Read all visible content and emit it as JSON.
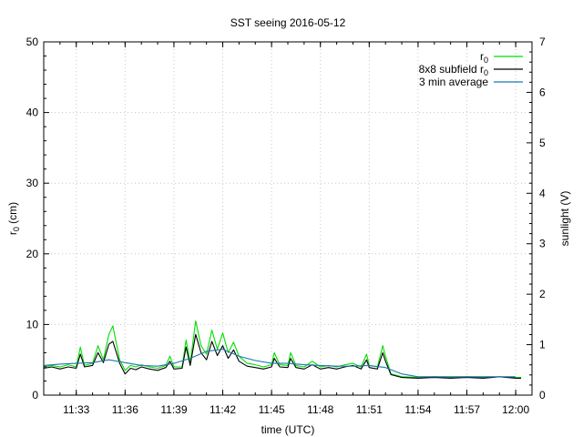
{
  "chart_data": {
    "type": "line",
    "title": "SST seeing 2016-05-12",
    "xlabel": "time (UTC)",
    "ylabel_main": "r",
    "ylabel_sub": "0",
    "ylabel_unit": " (cm)",
    "y2label": "sunlight (V)",
    "xlim": [
      "11:31",
      "12:01"
    ],
    "ylim": [
      0,
      50
    ],
    "y2lim": [
      0,
      7
    ],
    "x_ticks": [
      "11:33",
      "11:36",
      "11:39",
      "11:42",
      "11:45",
      "11:48",
      "11:51",
      "11:54",
      "11:57",
      "12:00"
    ],
    "y_ticks": [
      0,
      10,
      20,
      30,
      40,
      50
    ],
    "y2_ticks": [
      0,
      1,
      2,
      3,
      4,
      5,
      6,
      7
    ],
    "grid": true,
    "legend_position": "top-right",
    "legend": [
      {
        "main": "r",
        "sub": "0",
        "color": "#00e000"
      },
      {
        "main": "8x8 subfield r",
        "sub": "0",
        "color": "#000000"
      },
      {
        "main": "3 min average",
        "sub": "",
        "color": "#1f77b4"
      }
    ],
    "series": [
      {
        "color": "#00e000",
        "x": [
          "11:31:00",
          "11:31:30",
          "11:32:00",
          "11:32:30",
          "11:33:00",
          "11:33:15",
          "11:33:30",
          "11:34:00",
          "11:34:20",
          "11:34:40",
          "11:35:00",
          "11:35:15",
          "11:35:40",
          "11:36:00",
          "11:36:20",
          "11:36:40",
          "11:37:00",
          "11:37:30",
          "11:38:00",
          "11:38:30",
          "11:38:45",
          "11:39:00",
          "11:39:30",
          "11:39:45",
          "11:40:00",
          "11:40:20",
          "11:40:40",
          "11:41:00",
          "11:41:20",
          "11:41:40",
          "11:42:00",
          "11:42:20",
          "11:42:40",
          "11:43:00",
          "11:43:30",
          "11:44:00",
          "11:44:30",
          "11:45:00",
          "11:45:10",
          "11:45:30",
          "11:46:00",
          "11:46:10",
          "11:46:30",
          "11:47:00",
          "11:47:30",
          "11:48:00",
          "11:48:30",
          "11:49:00",
          "11:49:30",
          "11:50:00",
          "11:50:30",
          "11:50:50",
          "11:51:00",
          "11:51:30",
          "11:51:50",
          "11:52:00",
          "11:52:20",
          "11:53:00",
          "11:54:00",
          "11:55:00",
          "11:56:00",
          "11:57:00",
          "11:58:00",
          "11:59:00",
          "12:00:00",
          "12:00:20"
        ],
        "values": [
          4.0,
          4.2,
          4.0,
          4.3,
          4.0,
          6.8,
          4.2,
          4.5,
          7.0,
          5.0,
          8.6,
          9.8,
          5.0,
          3.5,
          4.2,
          4.0,
          4.3,
          4.0,
          3.8,
          4.2,
          5.5,
          4.0,
          4.0,
          7.8,
          4.5,
          10.5,
          7.0,
          5.8,
          9.2,
          6.5,
          8.8,
          6.0,
          7.5,
          5.5,
          4.5,
          4.3,
          4.0,
          4.3,
          6.0,
          4.3,
          4.2,
          6.0,
          4.2,
          4.0,
          4.8,
          4.0,
          4.2,
          4.0,
          4.3,
          4.5,
          4.0,
          5.8,
          4.2,
          4.0,
          7.0,
          5.5,
          3.0,
          2.6,
          2.5,
          2.6,
          2.5,
          2.6,
          2.5,
          2.6,
          2.5,
          2.5
        ]
      },
      {
        "color": "#000000",
        "x": [
          "11:31:00",
          "11:31:30",
          "11:32:00",
          "11:32:30",
          "11:33:00",
          "11:33:15",
          "11:33:30",
          "11:34:00",
          "11:34:20",
          "11:34:40",
          "11:35:00",
          "11:35:15",
          "11:35:40",
          "11:36:00",
          "11:36:20",
          "11:36:40",
          "11:37:00",
          "11:37:30",
          "11:38:00",
          "11:38:30",
          "11:38:45",
          "11:39:00",
          "11:39:30",
          "11:39:45",
          "11:40:00",
          "11:40:20",
          "11:40:40",
          "11:41:00",
          "11:41:20",
          "11:41:40",
          "11:42:00",
          "11:42:20",
          "11:42:40",
          "11:43:00",
          "11:43:30",
          "11:44:00",
          "11:44:30",
          "11:45:00",
          "11:45:10",
          "11:45:30",
          "11:46:00",
          "11:46:10",
          "11:46:30",
          "11:47:00",
          "11:47:30",
          "11:48:00",
          "11:48:30",
          "11:49:00",
          "11:49:30",
          "11:50:00",
          "11:50:30",
          "11:50:50",
          "11:51:00",
          "11:51:30",
          "11:51:50",
          "11:52:00",
          "11:52:20",
          "11:53:00",
          "11:54:00",
          "11:55:00",
          "11:56:00",
          "11:57:00",
          "11:58:00",
          "11:59:00",
          "12:00:00",
          "12:00:20"
        ],
        "values": [
          3.8,
          4.0,
          3.7,
          4.0,
          3.8,
          5.8,
          4.0,
          4.2,
          6.0,
          4.6,
          7.2,
          7.6,
          4.5,
          3.0,
          3.8,
          3.6,
          4.0,
          3.7,
          3.5,
          3.9,
          4.8,
          3.7,
          3.8,
          6.8,
          4.2,
          8.6,
          6.0,
          5.0,
          7.6,
          5.6,
          7.0,
          5.2,
          6.4,
          4.8,
          4.1,
          3.9,
          3.7,
          4.0,
          5.2,
          4.0,
          3.9,
          5.2,
          3.9,
          3.7,
          4.3,
          3.7,
          3.9,
          3.7,
          4.0,
          4.2,
          3.7,
          5.0,
          3.9,
          3.7,
          6.0,
          4.8,
          2.9,
          2.5,
          2.4,
          2.5,
          2.4,
          2.5,
          2.4,
          2.6,
          2.4,
          2.4
        ]
      },
      {
        "color": "#1f77b4",
        "x": [
          "11:31:00",
          "11:32:00",
          "11:33:00",
          "11:34:00",
          "11:35:00",
          "11:36:00",
          "11:37:00",
          "11:38:00",
          "11:39:00",
          "11:40:00",
          "11:41:00",
          "11:42:00",
          "11:43:00",
          "11:44:00",
          "11:45:00",
          "11:46:00",
          "11:47:00",
          "11:48:00",
          "11:49:00",
          "11:50:00",
          "11:51:00",
          "11:52:00",
          "11:53:00",
          "11:54:00",
          "11:55:00",
          "11:56:00",
          "11:57:00",
          "11:58:00",
          "11:59:00",
          "12:00:00"
        ],
        "values": [
          4.2,
          4.4,
          4.5,
          4.6,
          5.0,
          4.6,
          4.2,
          4.1,
          4.5,
          5.2,
          6.2,
          6.5,
          5.5,
          4.9,
          4.5,
          4.5,
          4.3,
          4.2,
          4.1,
          4.1,
          4.2,
          3.9,
          3.0,
          2.6,
          2.6,
          2.6,
          2.6,
          2.6,
          2.6,
          2.6
        ]
      }
    ]
  }
}
